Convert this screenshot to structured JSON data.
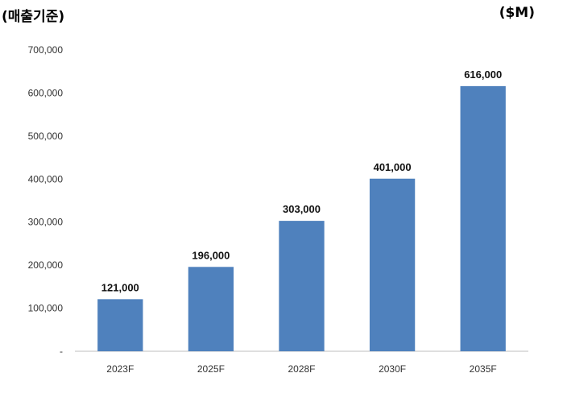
{
  "header": {
    "basis_label": "(매출기준)",
    "unit_label": "($M)"
  },
  "chart_data": {
    "type": "bar",
    "categories": [
      "2023F",
      "2025F",
      "2028F",
      "2030F",
      "2035F"
    ],
    "values": [
      121000,
      196000,
      303000,
      401000,
      616000
    ],
    "data_labels": [
      "121,000",
      "196,000",
      "303,000",
      "401,000",
      "616,000"
    ],
    "ylim": [
      0,
      700000
    ],
    "yticks": [
      0,
      100000,
      200000,
      300000,
      400000,
      500000,
      600000,
      700000
    ],
    "ytick_labels": [
      "-",
      "100,000",
      "200,000",
      "300,000",
      "400,000",
      "500,000",
      "600,000",
      "700,000"
    ],
    "grid": false,
    "legend": "none",
    "bar_color": "#4f81bd"
  }
}
